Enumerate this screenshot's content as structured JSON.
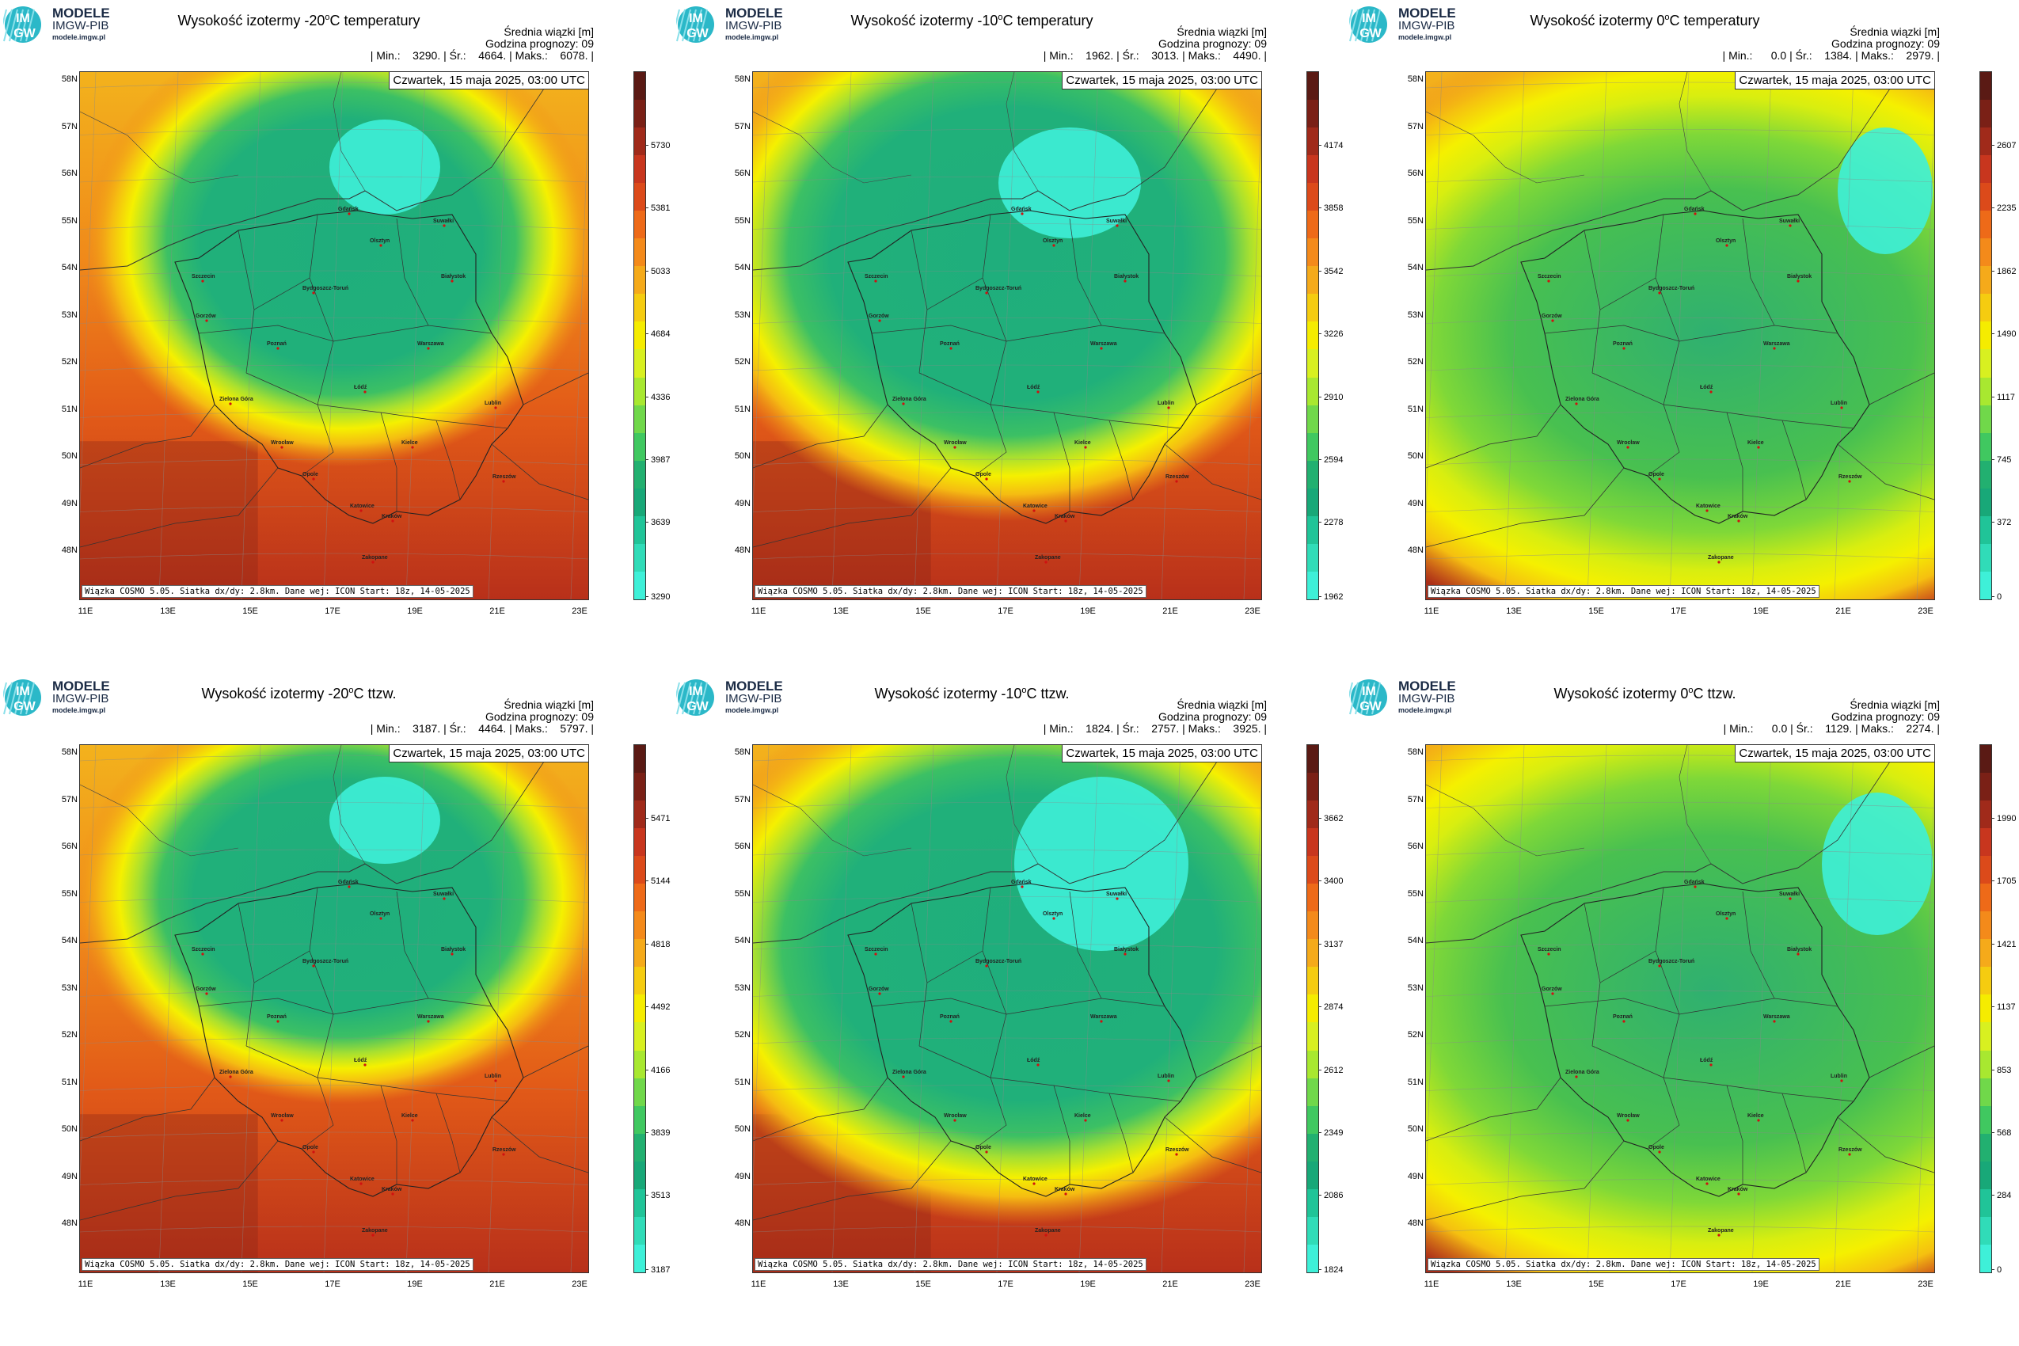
{
  "logo": {
    "line1": "MODELE",
    "line2": "IMGW-PIB",
    "line3": "modele.imgw.pl",
    "mark_top": "IM",
    "mark_bottom": "GW"
  },
  "common": {
    "info_title": "Średnia wiązki [m]",
    "forecast_hour": "Godzina prognozy: 09",
    "date": "Czwartek, 15 maja 2025, 03:00 UTC",
    "credit": "Wiązka COSMO 5.05. Siatka dx/dy: 2.8km. Dane wej: ICON Start: 18z, 14-05-2025",
    "lat_labels": [
      "58N",
      "57N",
      "56N",
      "55N",
      "54N",
      "53N",
      "52N",
      "51N",
      "50N",
      "49N",
      "48N"
    ],
    "lon_labels": [
      "11E",
      "13E",
      "15E",
      "17E",
      "19E",
      "21E",
      "23E"
    ],
    "cities": [
      "Gdańsk",
      "Olsztyn",
      "Suwałki",
      "Szczecin",
      "Bydgoszcz-Toruń",
      "Białystok",
      "Gorzów",
      "Poznań",
      "Warszawa",
      "Zielona Góra",
      "Łódź",
      "Lublin",
      "Wrocław",
      "Kielce",
      "Opole",
      "Rzeszów",
      "Katowice",
      "Kraków",
      "Zakopane"
    ],
    "colors": {
      "low": "#3ef0d8",
      "green": "#1fb07a",
      "yellow": "#f5f000",
      "orange": "#ee6a18",
      "red": "#c8281e",
      "dark": "#5a1a14"
    }
  },
  "panels": [
    {
      "title_pre": "Wysokość izotermy -20",
      "title_sup": "o",
      "title_post": "C temperatury",
      "stats": "| Min.:    3290. | Śr.:    4664. | Maks.:    6078. |",
      "colorbar": [
        "5730",
        "5381",
        "5033",
        "4684",
        "4336",
        "3987",
        "3639",
        "3290"
      ]
    },
    {
      "title_pre": "Wysokość izotermy -10",
      "title_sup": "o",
      "title_post": "C temperatury",
      "stats": "| Min.:    1962. | Śr.:    3013. | Maks.:    4490. |",
      "colorbar": [
        "4174",
        "3858",
        "3542",
        "3226",
        "2910",
        "2594",
        "2278",
        "1962"
      ]
    },
    {
      "title_pre": "Wysokość izotermy 0",
      "title_sup": "o",
      "title_post": "C temperatury",
      "stats": "| Min.:      0.0 | Śr.:    1384. | Maks.:    2979. |",
      "colorbar": [
        "2607",
        "2235",
        "1862",
        "1490",
        "1117",
        "745",
        "372",
        "0"
      ]
    },
    {
      "title_pre": "Wysokość izotermy -20",
      "title_sup": "o",
      "title_post": "C ttzw.",
      "stats": "| Min.:    3187. | Śr.:    4464. | Maks.:    5797. |",
      "colorbar": [
        "5471",
        "5144",
        "4818",
        "4492",
        "4166",
        "3839",
        "3513",
        "3187"
      ]
    },
    {
      "title_pre": "Wysokość izotermy -10",
      "title_sup": "o",
      "title_post": "C ttzw.",
      "stats": "| Min.:    1824. | Śr.:    2757. | Maks.:    3925. |",
      "colorbar": [
        "3662",
        "3400",
        "3137",
        "2874",
        "2612",
        "2349",
        "2086",
        "1824"
      ]
    },
    {
      "title_pre": "Wysokość izotermy 0",
      "title_sup": "o",
      "title_post": "C ttzw.",
      "stats": "| Min.:      0.0 | Śr.:    1129. | Maks.:    2274. |",
      "colorbar": [
        "1990",
        "1705",
        "1421",
        "1137",
        "853",
        "568",
        "284",
        "0"
      ]
    }
  ]
}
